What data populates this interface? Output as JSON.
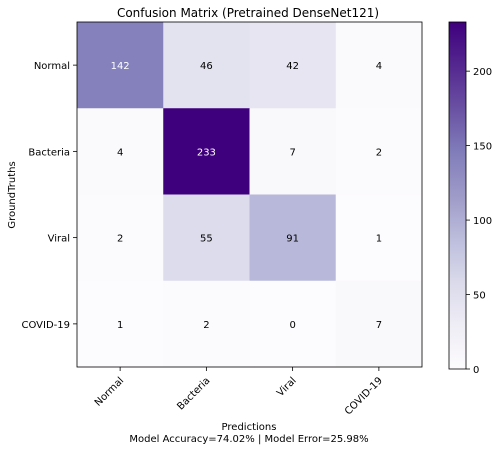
{
  "chart_data": {
    "type": "heatmap",
    "title": "Confusion Matrix (Pretrained DenseNet121)",
    "ylabel": "GroundTruths",
    "xlabel": "Predictions",
    "xlabel_line2": "Model Accuracy=74.02% | Model Error=25.98%",
    "row_labels": [
      "Normal",
      "Bacteria",
      "Viral",
      "COVID-19"
    ],
    "col_labels": [
      "Normal",
      "Bacteria",
      "Viral",
      "COVID-19"
    ],
    "matrix": [
      [
        142,
        46,
        42,
        4
      ],
      [
        4,
        233,
        7,
        2
      ],
      [
        2,
        55,
        91,
        1
      ],
      [
        1,
        2,
        0,
        7
      ]
    ],
    "colormap": "Purples",
    "color_range": [
      0,
      233
    ],
    "colorbar_ticks": [
      0,
      50,
      100,
      150,
      200
    ],
    "colors": {
      "low": "#fcfbfd",
      "high": "#3f007d"
    }
  }
}
